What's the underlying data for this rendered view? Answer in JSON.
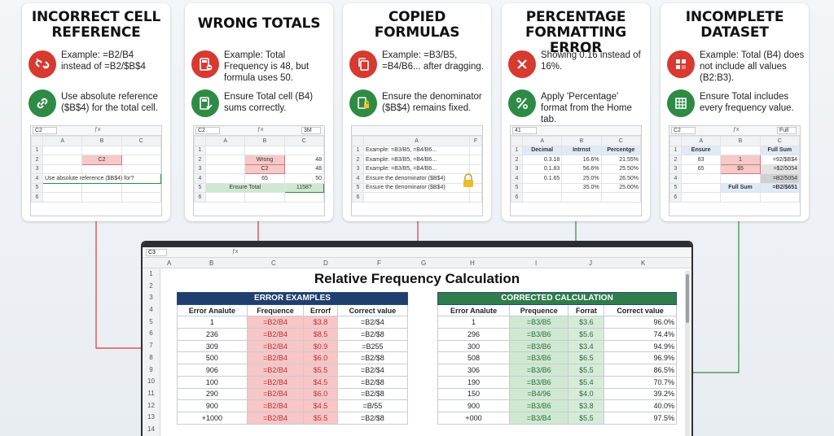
{
  "cards": [
    {
      "title": "INCORRECT CELL REFERENCE",
      "problem": "Example: =B2/B4 instead of =B2/$B$4",
      "fix": "Use absolute reference ($B$4) for the total cell.",
      "mini": {
        "namebox": "C2",
        "cols": [
          "A",
          "B",
          "C"
        ],
        "cell": "C2",
        "note": "Use absolute reference ($B$4) for?"
      }
    },
    {
      "title": "WRONG TOTALS",
      "problem": "Example: Total Frequency is 48, but formula uses 50.",
      "fix": "Ensure Total cell (B4) sums correctly.",
      "mini": {
        "namebox": "C2",
        "fxval": "3M",
        "cols": [
          "A",
          "B",
          "C"
        ],
        "rows": [
          [
            "Wrong",
            "48"
          ],
          [
            "C2",
            "48"
          ],
          [
            "65",
            "50"
          ],
          [
            "Ensure Total",
            "1158?"
          ]
        ]
      }
    },
    {
      "title": "COPIED FORMULAS",
      "problem": "Example: =B3/B5, =B4/B6... after dragging.",
      "fix": "Ensure the denominator ($B$4) remains fixed.",
      "mini": {
        "cols": [
          "A",
          "F"
        ],
        "rows": [
          "Example: =B3/B5, =B4/B6...",
          "Example: =B3/B5, =B4/B6...",
          "Example: =B3/B5, =B4/B6...",
          "Ensure the denominator ($B$4)",
          "Ensure the denominator ($B$4)"
        ]
      }
    },
    {
      "title": "PERCENTAGE FORMATTING ERROR",
      "problem": "Showing 0.16 instead of 16%.",
      "fix": "Apply 'Percentage' format from the Home tab.",
      "mini": {
        "namebox": "41",
        "cols": [
          "A",
          "B",
          "C"
        ],
        "headers": [
          "Decimal",
          "Intrnst",
          "Percentge"
        ],
        "rows": [
          [
            "0.3.18",
            "16.6%",
            "21.55%"
          ],
          [
            "0.1.83",
            "56.6%",
            "25.50%"
          ],
          [
            "0.1.65",
            "25.0%",
            "26.50%"
          ],
          [
            "",
            "35.0%",
            "25.00%"
          ]
        ]
      }
    },
    {
      "title": "INCOMPLETE DATASET",
      "problem": "Example: Total (B4) does not include all values (B2:B3).",
      "fix": "Ensure Total includes every frequency value.",
      "mini": {
        "namebox": "C2",
        "fxval": "Full",
        "cols": [
          "A",
          "B",
          "C"
        ],
        "headers": [
          "Ensure",
          "",
          "Full Sum"
        ],
        "rows": [
          [
            "83",
            "1",
            "=92/$B$4"
          ],
          [
            "65",
            "$5",
            "=$2/5054"
          ],
          [
            "",
            "",
            "=B2/5054"
          ],
          [
            "",
            "Full Sum",
            "=B2/$651"
          ]
        ]
      }
    }
  ],
  "sheet": {
    "namebox": "C3",
    "columns": [
      "A",
      "B",
      "C",
      "D",
      "F",
      "G",
      "H",
      "I",
      "J",
      "K"
    ],
    "rows": [
      "1",
      "2",
      "3",
      "4",
      "5",
      "6",
      "7",
      "8",
      "9",
      "10",
      "11",
      "12",
      "13",
      "14"
    ],
    "title": "Relative Frequency Calculation",
    "errors": {
      "band": "ERROR EXAMPLES",
      "band_color": "#1f3f6e",
      "headers": [
        "Error Analute",
        "Frequence",
        "Errorf",
        "Correct value"
      ],
      "rows": [
        [
          "1",
          "=B2/B4",
          "$3.8",
          "=B2/$4"
        ],
        [
          "236",
          "=B2/B4",
          "$8.5",
          "=B2/$8"
        ],
        [
          "309",
          "=B2/B4",
          "$0.9",
          "=B255"
        ],
        [
          "500",
          "=B2/B4",
          "$6.0",
          "=B2/$8"
        ],
        [
          "906",
          "=B2/B4",
          "$5.5",
          "=B2/$4"
        ],
        [
          "100",
          "=B2/B4",
          "$4.5",
          "=B2/$8"
        ],
        [
          "290",
          "=B2/B4",
          "$6.0",
          "=B2/$8"
        ],
        [
          "900",
          "=B2/B4",
          "$4.5",
          "=B/55"
        ],
        [
          "+1000",
          "=B2/B4",
          "$5.5",
          "=B2/$8"
        ]
      ]
    },
    "corrected": {
      "band": "CORRECTED CALCULATION",
      "band_color": "#2e7d4a",
      "headers": [
        "Error Analute",
        "Prequence",
        "Forrat",
        "Correct value"
      ],
      "rows": [
        [
          "1",
          "=B3/B5",
          "$3.6",
          "96.0%"
        ],
        [
          "296",
          "=B3/B6",
          "$5.6",
          "74.4%"
        ],
        [
          "300",
          "=B3/B6",
          "$3.4",
          "94.9%"
        ],
        [
          "508",
          "=B3/B6",
          "$6.5",
          "96.9%"
        ],
        [
          "306",
          "=B3/B6",
          "$5.5",
          "86.5%"
        ],
        [
          "190",
          "=B3/B6",
          "$5.4",
          "70.7%"
        ],
        [
          "150",
          "=B4/96",
          "$4.0",
          "39.2%"
        ],
        [
          "900",
          "=B3/B6",
          "$3.8",
          "40.0%"
        ],
        [
          "+000",
          "=B3/B4",
          "$5.5",
          "97.5%"
        ]
      ]
    }
  },
  "colors": {
    "red": "#d63a30",
    "green": "#2e8b45",
    "pink": "#f7c6c6",
    "mint": "#cfe9d1"
  }
}
